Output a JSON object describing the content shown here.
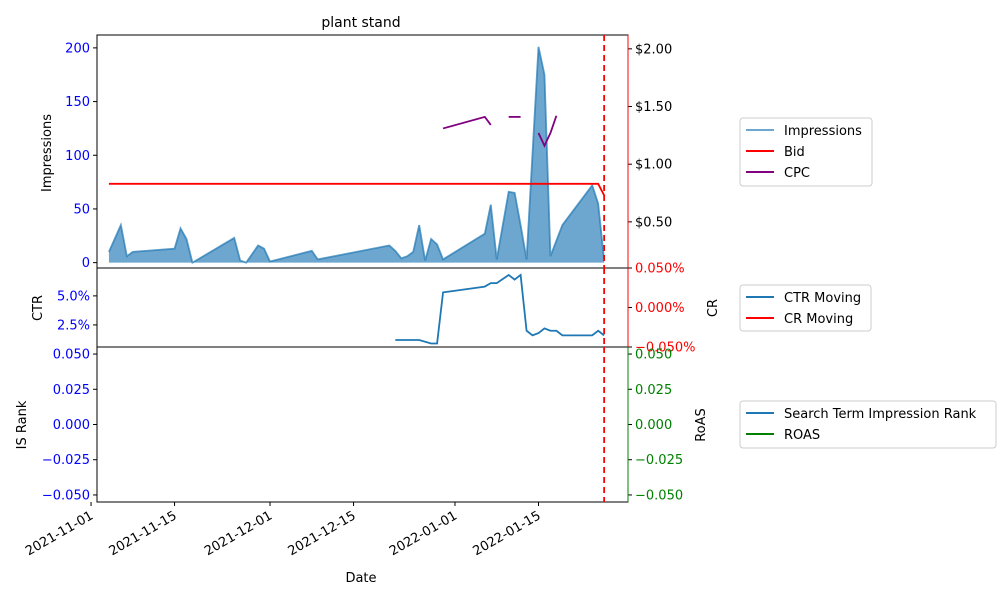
{
  "chart_data": [
    {
      "panel": "top",
      "type": "area",
      "title": "plant stand",
      "ylabel_left": "Impressions",
      "ylim_left": [
        -5,
        212
      ],
      "yticks_left": [
        0,
        50,
        100,
        150,
        200
      ],
      "yticklabels_left": [
        "0",
        "50",
        "100",
        "150",
        "200"
      ],
      "ylim_right": [
        0.1,
        2.12
      ],
      "yticks_right": [
        0.5,
        1.0,
        1.5,
        2.0
      ],
      "yticklabels_right": [
        "$0.50",
        "$1.00",
        "$1.50",
        "$2.00"
      ],
      "right_axis_color": "#ff0000",
      "legend_position": "outside-right",
      "legend": [
        "Impressions",
        "Bid",
        "CPC"
      ],
      "series": [
        {
          "name": "Impressions",
          "axis": "left",
          "style": "area",
          "color": "#1f77b4",
          "x": [
            "2021-11-04",
            "2021-11-06",
            "2021-11-07",
            "2021-11-08",
            "2021-11-15",
            "2021-11-16",
            "2021-11-17",
            "2021-11-18",
            "2021-11-25",
            "2021-11-26",
            "2021-11-27",
            "2021-11-29",
            "2021-11-30",
            "2021-12-01",
            "2021-12-08",
            "2021-12-09",
            "2021-12-21",
            "2021-12-22",
            "2021-12-23",
            "2021-12-24",
            "2021-12-25",
            "2021-12-26",
            "2021-12-27",
            "2021-12-28",
            "2021-12-29",
            "2021-12-30",
            "2022-01-06",
            "2022-01-07",
            "2022-01-08",
            "2022-01-10",
            "2022-01-11",
            "2022-01-12",
            "2022-01-13",
            "2022-01-15",
            "2022-01-16",
            "2022-01-17",
            "2022-01-19",
            "2022-01-24",
            "2022-01-25",
            "2022-01-26"
          ],
          "values": [
            10,
            35,
            6,
            10,
            13,
            32,
            22,
            0,
            23,
            2,
            0,
            16,
            13,
            1,
            11,
            3,
            16,
            11,
            4,
            6,
            10,
            35,
            2,
            22,
            17,
            3,
            27,
            54,
            3,
            66,
            65,
            35,
            3,
            201,
            175,
            6,
            35,
            72,
            55,
            2
          ]
        },
        {
          "name": "Bid",
          "axis": "right",
          "style": "line",
          "color": "#ff0000",
          "x": [
            "2021-11-04",
            "2022-01-25",
            "2022-01-26"
          ],
          "values": [
            0.83,
            0.83,
            0.73
          ]
        },
        {
          "name": "CPC",
          "axis": "right",
          "style": "line",
          "color": "#800080",
          "segments": [
            {
              "x": [
                "2021-12-30",
                "2022-01-06",
                "2022-01-07"
              ],
              "values": [
                1.31,
                1.41,
                1.34
              ]
            },
            {
              "x": [
                "2022-01-10",
                "2022-01-12"
              ],
              "values": [
                1.41,
                1.41
              ]
            },
            {
              "x": [
                "2022-01-15",
                "2022-01-16",
                "2022-01-17",
                "2022-01-18"
              ],
              "values": [
                1.27,
                1.16,
                1.27,
                1.42
              ]
            }
          ]
        }
      ],
      "vline": {
        "x": "2022-01-26",
        "color": "#ff0000",
        "style": "dashed"
      }
    },
    {
      "panel": "middle",
      "type": "line",
      "ylabel_left": "CTR",
      "ylabel_right": "CR",
      "ylim_left": [
        0.6,
        7.4
      ],
      "yticks_left": [
        2.5,
        5.0
      ],
      "yticklabels_left": [
        "2.5%",
        "5.0%"
      ],
      "ylim_right": [
        -0.05,
        0.05
      ],
      "yticks_right": [
        -0.05,
        0.0,
        0.05
      ],
      "yticklabels_right": [
        "−0.050%",
        "0.000%",
        "0.050%"
      ],
      "right_axis_color": "#ff0000",
      "legend_position": "outside-right",
      "legend": [
        "CTR Moving",
        "CR Moving"
      ],
      "series": [
        {
          "name": "CTR Moving",
          "axis": "left",
          "color": "#1f77b4",
          "x": [
            "2021-12-22",
            "2021-12-26",
            "2021-12-28",
            "2021-12-29",
            "2021-12-30",
            "2022-01-06",
            "2022-01-07",
            "2022-01-08",
            "2022-01-10",
            "2022-01-11",
            "2022-01-12",
            "2022-01-13",
            "2022-01-14",
            "2022-01-15",
            "2022-01-16",
            "2022-01-17",
            "2022-01-18",
            "2022-01-19",
            "2022-01-21",
            "2022-01-24",
            "2022-01-25",
            "2022-01-26"
          ],
          "values": [
            1.2,
            1.2,
            0.9,
            0.9,
            5.3,
            5.8,
            6.1,
            6.1,
            6.8,
            6.4,
            6.8,
            2.0,
            1.6,
            1.8,
            2.2,
            2.0,
            2.0,
            1.6,
            1.6,
            1.6,
            2.0,
            1.6
          ]
        },
        {
          "name": "CR Moving",
          "axis": "right",
          "color": "#ff0000",
          "x": [],
          "values": []
        }
      ],
      "vline": {
        "x": "2022-01-26",
        "color": "#ff0000",
        "style": "dashed"
      }
    },
    {
      "panel": "bottom",
      "type": "line",
      "ylabel_left": "IS Rank",
      "ylabel_right": "RoAS",
      "xlabel": "Date",
      "ylim_left": [
        -0.055,
        0.055
      ],
      "yticks_left": [
        -0.05,
        -0.025,
        0.0,
        0.025,
        0.05
      ],
      "yticklabels_left": [
        "−0.050",
        "−0.025",
        "0.000",
        "0.025",
        "0.050"
      ],
      "ylim_right": [
        -0.055,
        0.055
      ],
      "yticks_right": [
        -0.05,
        -0.025,
        0.0,
        0.025,
        0.05
      ],
      "yticklabels_right": [
        "−0.050",
        "−0.025",
        "0.000",
        "0.025",
        "0.050"
      ],
      "right_axis_color": "#008000",
      "legend_position": "outside-right",
      "legend": [
        "Search Term Impression Rank",
        "ROAS"
      ],
      "series": [
        {
          "name": "Search Term Impression Rank",
          "axis": "left",
          "color": "#1f77b4",
          "x": [],
          "values": []
        },
        {
          "name": "ROAS",
          "axis": "right",
          "color": "#008000",
          "x": [],
          "values": []
        }
      ],
      "xticks": [
        "2021-11-01",
        "2021-11-15",
        "2021-12-01",
        "2021-12-15",
        "2022-01-01",
        "2022-01-15"
      ],
      "xticklabels": [
        "2021-11-01",
        "2021-11-15",
        "2021-12-01",
        "2021-12-15",
        "2022-01-01",
        "2022-01-15"
      ],
      "vline": {
        "x": "2022-01-26",
        "color": "#ff0000",
        "style": "dashed"
      }
    }
  ],
  "x_range": [
    "2021-11-02",
    "2022-01-30"
  ]
}
